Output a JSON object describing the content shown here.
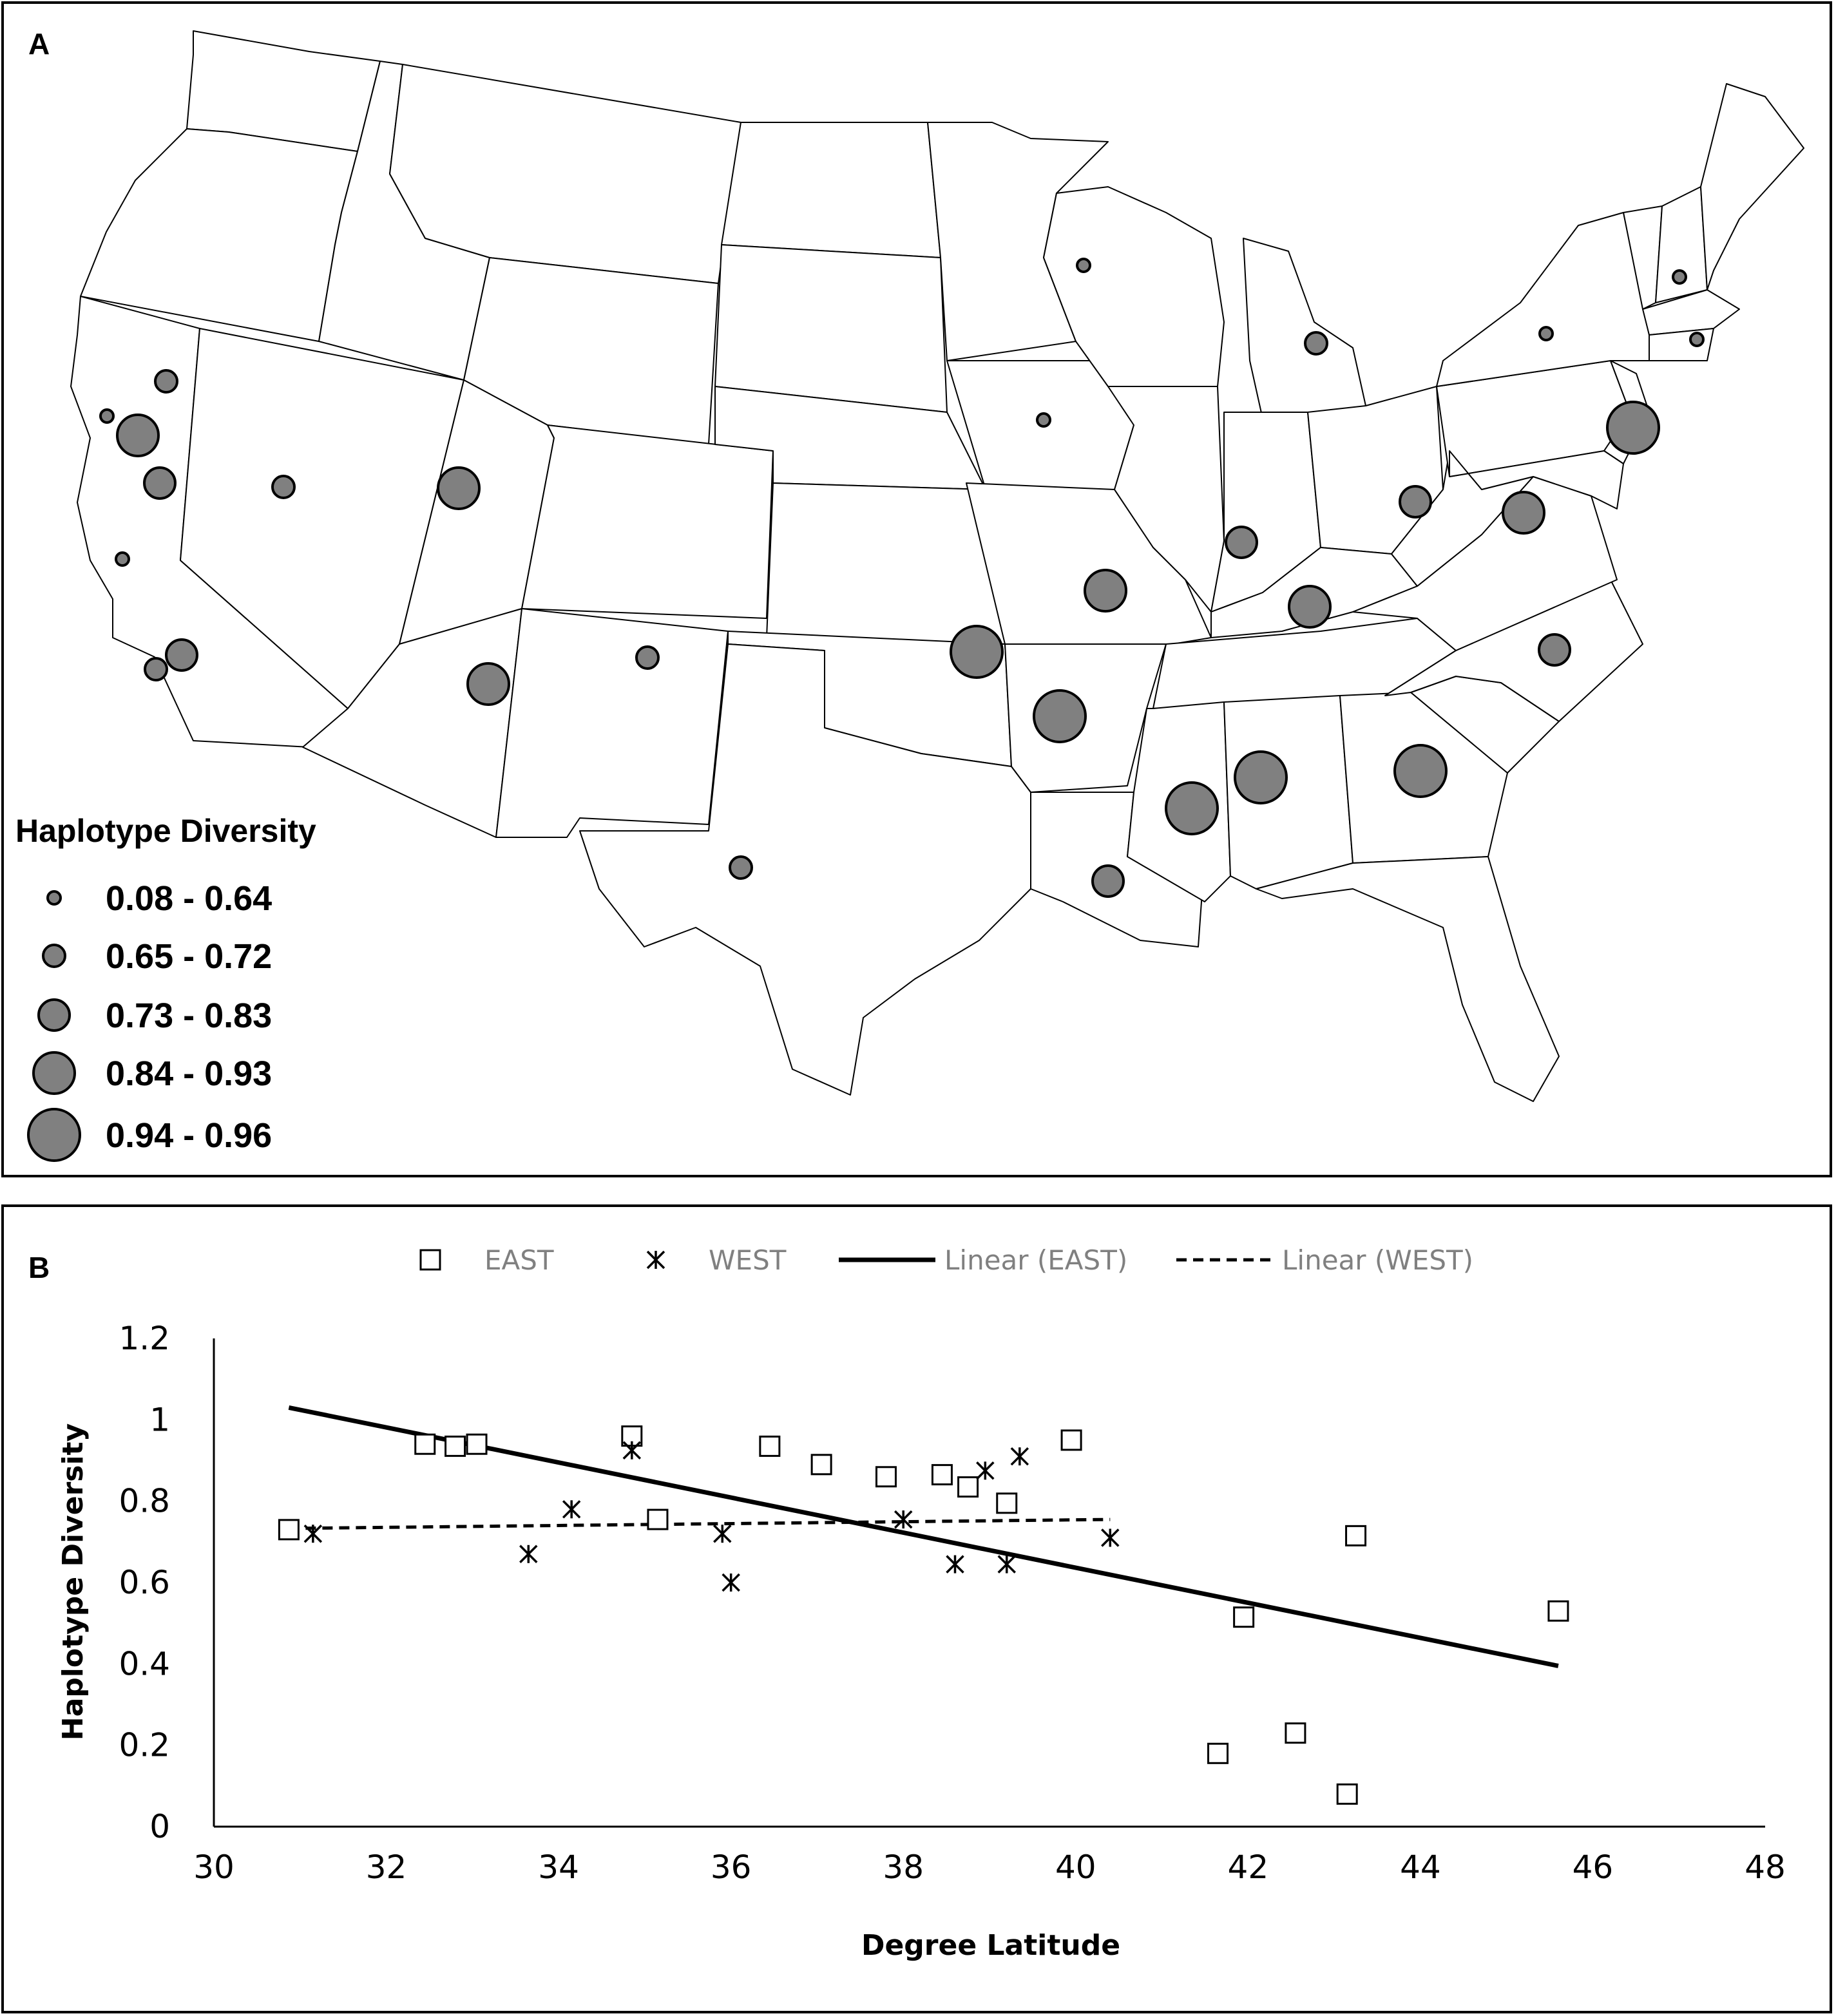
{
  "panel_a": {
    "label": "A",
    "legend": {
      "title": "Haplotype Diversity",
      "classes": [
        "0.08 - 0.64",
        "0.65 - 0.72",
        "0.73 - 0.83",
        "0.84 - 0.93",
        "0.94 - 0.96"
      ]
    }
  },
  "panel_b": {
    "label": "B"
  },
  "chart_data": [
    {
      "type": "map",
      "description_of_marks": "graduated circles at sampling sites on a map of the contiguous United States",
      "legend_title": "Haplotype Diversity",
      "size_classes": [
        "0.08 - 0.64",
        "0.65 - 0.72",
        "0.73 - 0.83",
        "0.84 - 0.93",
        "0.94 - 0.96"
      ],
      "sites": [
        {
          "state": "WI",
          "class": 0
        },
        {
          "state": "MI",
          "class": 1
        },
        {
          "state": "NY",
          "class": 0
        },
        {
          "state": "NH",
          "class": 0
        },
        {
          "state": "MA",
          "class": 0
        },
        {
          "state": "NJ",
          "class": 4
        },
        {
          "state": "IA",
          "class": 0
        },
        {
          "state": "OH",
          "class": 2
        },
        {
          "state": "VA",
          "class": 3
        },
        {
          "state": "IN",
          "class": 2
        },
        {
          "state": "MO",
          "class": 3
        },
        {
          "state": "KY",
          "class": 3
        },
        {
          "state": "NC",
          "class": 2
        },
        {
          "state": "OK",
          "class": 4
        },
        {
          "state": "AR",
          "class": 4
        },
        {
          "state": "MS",
          "class": 4
        },
        {
          "state": "AL",
          "class": 4
        },
        {
          "state": "GA",
          "class": 4
        },
        {
          "state": "LA",
          "class": 2
        },
        {
          "state": "TX",
          "class": 1
        },
        {
          "state": "NM",
          "class": 1
        },
        {
          "state": "AZ",
          "class": 3
        },
        {
          "state": "UT",
          "class": 3
        },
        {
          "state": "NV",
          "class": 1
        },
        {
          "state": "CA",
          "class": 1
        },
        {
          "state": "CA",
          "class": 0
        },
        {
          "state": "CA",
          "class": 3
        },
        {
          "state": "CA",
          "class": 2
        },
        {
          "state": "CA",
          "class": 0
        },
        {
          "state": "CA",
          "class": 2
        },
        {
          "state": "CA",
          "class": 1
        }
      ]
    },
    {
      "type": "scatter",
      "xlabel": "Degree Latitude",
      "ylabel": "Haplotype Diversity",
      "xlim": [
        30,
        48
      ],
      "ylim": [
        0,
        1.2
      ],
      "xticks": [
        "30",
        "32",
        "34",
        "36",
        "38",
        "40",
        "42",
        "44",
        "46",
        "48"
      ],
      "yticks": [
        "0",
        "0.2",
        "0.4",
        "0.6",
        "0.8",
        "1",
        "1.2"
      ],
      "legend_position": "top",
      "grid": false,
      "series": [
        {
          "name": "EAST",
          "marker": "square",
          "points": [
            [
              30.87,
              0.73
            ],
            [
              32.45,
              0.94
            ],
            [
              32.8,
              0.935
            ],
            [
              33.05,
              0.94
            ],
            [
              34.85,
              0.96
            ],
            [
              35.15,
              0.755
            ],
            [
              36.45,
              0.935
            ],
            [
              37.05,
              0.89
            ],
            [
              37.8,
              0.86
            ],
            [
              38.45,
              0.865
            ],
            [
              38.75,
              0.835
            ],
            [
              39.2,
              0.795
            ],
            [
              39.95,
              0.95
            ],
            [
              41.65,
              0.18
            ],
            [
              41.95,
              0.515
            ],
            [
              42.55,
              0.23
            ],
            [
              43.15,
              0.08
            ],
            [
              43.25,
              0.715
            ],
            [
              45.6,
              0.53
            ]
          ]
        },
        {
          "name": "WEST",
          "marker": "asterisk",
          "points": [
            [
              31.15,
              0.72
            ],
            [
              33.65,
              0.67
            ],
            [
              34.15,
              0.78
            ],
            [
              34.85,
              0.925
            ],
            [
              35.9,
              0.72
            ],
            [
              36.0,
              0.6
            ],
            [
              38.0,
              0.755
            ],
            [
              38.6,
              0.645
            ],
            [
              38.95,
              0.875
            ],
            [
              39.2,
              0.645
            ],
            [
              39.35,
              0.91
            ],
            [
              40.4,
              0.71
            ]
          ]
        }
      ],
      "trendlines": [
        {
          "name": "Linear (EAST)",
          "style": "solid",
          "x": [
            30.87,
            45.6
          ],
          "y": [
            1.03,
            0.395
          ]
        },
        {
          "name": "Linear (WEST)",
          "style": "dashed",
          "x": [
            30.87,
            40.4
          ],
          "y": [
            0.733,
            0.755
          ]
        }
      ]
    }
  ]
}
